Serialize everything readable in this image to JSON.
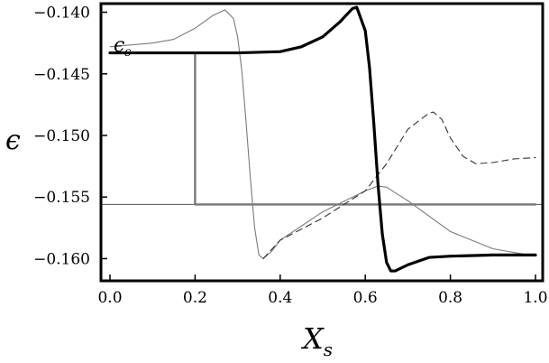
{
  "chart_data": {
    "type": "line",
    "xlabel": "X",
    "xlabel_sub": "s",
    "ylabel": "ϵ",
    "annotation": "ϵ",
    "annotation_sub": "s",
    "xlim": [
      0.0,
      1.0
    ],
    "ylim": [
      -0.1618,
      -0.1393
    ],
    "x_ticks": [
      "0.0",
      "0.2",
      "0.4",
      "0.6",
      "0.8",
      "1.0"
    ],
    "y_ticks": [
      "-0.140",
      "-0.145",
      "-0.150",
      "-0.155",
      "-0.160"
    ],
    "x_tick_values": [
      0.0,
      0.2,
      0.4,
      0.6,
      0.8,
      1.0
    ],
    "y_tick_values": [
      -0.14,
      -0.145,
      -0.15,
      -0.155,
      -0.16
    ],
    "grid": false,
    "colors": {
      "thick": "#000000",
      "thin": "#7a7a7a",
      "dashed": "#333333",
      "step": "#777777",
      "hline": "#555555"
    },
    "series": [
      {
        "style": "thick-solid",
        "x": [
          0.0,
          0.1,
          0.2,
          0.3,
          0.4,
          0.45,
          0.5,
          0.54,
          0.57,
          0.58,
          0.6,
          0.61,
          0.62,
          0.63,
          0.64,
          0.65,
          0.66,
          0.67,
          0.7,
          0.75,
          0.8,
          0.9,
          1.0
        ],
        "y": [
          -0.1433,
          -0.1433,
          -0.1433,
          -0.1433,
          -0.1432,
          -0.1428,
          -0.142,
          -0.1408,
          -0.1397,
          -0.1396,
          -0.1415,
          -0.1445,
          -0.149,
          -0.154,
          -0.158,
          -0.1603,
          -0.161,
          -0.161,
          -0.1605,
          -0.1599,
          -0.1598,
          -0.1597,
          -0.1597
        ]
      },
      {
        "style": "thin-solid",
        "x": [
          0.0,
          0.1,
          0.15,
          0.2,
          0.24,
          0.27,
          0.29,
          0.3,
          0.31,
          0.32,
          0.33,
          0.34,
          0.35,
          0.36,
          0.38,
          0.4,
          0.5,
          0.6,
          0.63,
          0.65,
          0.7,
          0.8,
          0.9,
          1.0
        ],
        "y": [
          -0.1428,
          -0.1425,
          -0.1422,
          -0.1413,
          -0.1403,
          -0.1398,
          -0.1405,
          -0.142,
          -0.1448,
          -0.149,
          -0.1535,
          -0.1575,
          -0.1597,
          -0.16,
          -0.1594,
          -0.1585,
          -0.1562,
          -0.1545,
          -0.1541,
          -0.1542,
          -0.1553,
          -0.1578,
          -0.1592,
          -0.1598
        ]
      },
      {
        "style": "dashed",
        "x": [
          0.36,
          0.4,
          0.5,
          0.6,
          0.65,
          0.7,
          0.73,
          0.75,
          0.76,
          0.78,
          0.8,
          0.83,
          0.86,
          0.9,
          0.95,
          1.0
        ],
        "y": [
          -0.16,
          -0.1585,
          -0.1567,
          -0.1545,
          -0.1523,
          -0.1495,
          -0.1487,
          -0.1482,
          -0.1481,
          -0.1487,
          -0.1502,
          -0.1517,
          -0.1523,
          -0.1522,
          -0.1519,
          -0.1518
        ]
      },
      {
        "style": "step",
        "x": [
          0.0,
          0.2,
          0.2,
          1.0
        ],
        "y": [
          -0.1433,
          -0.1433,
          -0.1556,
          -0.1556
        ]
      },
      {
        "style": "hline",
        "x": [
          0.0,
          1.0
        ],
        "y": [
          -0.1556,
          -0.1556
        ]
      }
    ]
  }
}
